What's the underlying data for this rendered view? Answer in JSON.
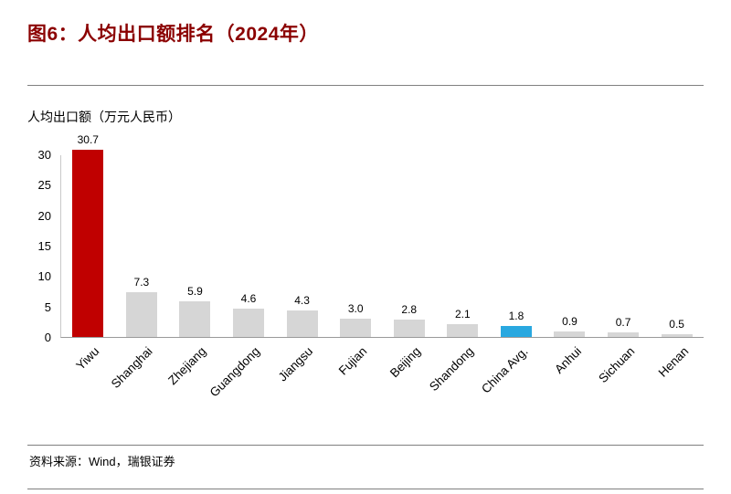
{
  "header": {
    "title": "图6：人均出口额排名（2024年）"
  },
  "chart": {
    "axis_title": "人均出口额（万元人民币）"
  },
  "footer": {
    "source": "资料来源：Wind，瑞银证券"
  },
  "colors": {
    "highlight_red": "#C00000",
    "highlight_blue": "#29A8E0",
    "default_gray": "#D6D6D6",
    "title_red": "#8B0000"
  },
  "chart_data": {
    "type": "bar",
    "title": "图6：人均出口额排名（2024年）",
    "xlabel": "",
    "ylabel": "人均出口额（万元人民币）",
    "categories": [
      "Yiwu",
      "Shanghai",
      "Zhejiang",
      "Guangdong",
      "Jiangsu",
      "Fujian",
      "Beijing",
      "Shandong",
      "China Avg.",
      "Anhui",
      "Sichuan",
      "Henan"
    ],
    "values": [
      30.7,
      7.3,
      5.9,
      4.6,
      4.3,
      3.0,
      2.8,
      2.1,
      1.8,
      0.9,
      0.7,
      0.5
    ],
    "value_labels": [
      "30.7",
      "7.3",
      "5.9",
      "4.6",
      "4.3",
      "3.0",
      "2.8",
      "2.1",
      "1.8",
      "0.9",
      "0.7",
      "0.5"
    ],
    "bar_colors": [
      "#C00000",
      "#D6D6D6",
      "#D6D6D6",
      "#D6D6D6",
      "#D6D6D6",
      "#D6D6D6",
      "#D6D6D6",
      "#D6D6D6",
      "#29A8E0",
      "#D6D6D6",
      "#D6D6D6",
      "#D6D6D6"
    ],
    "yticks": [
      0,
      5,
      10,
      15,
      20,
      25,
      30
    ],
    "ylim": [
      0,
      30
    ],
    "grid": false,
    "legend_position": "none"
  }
}
